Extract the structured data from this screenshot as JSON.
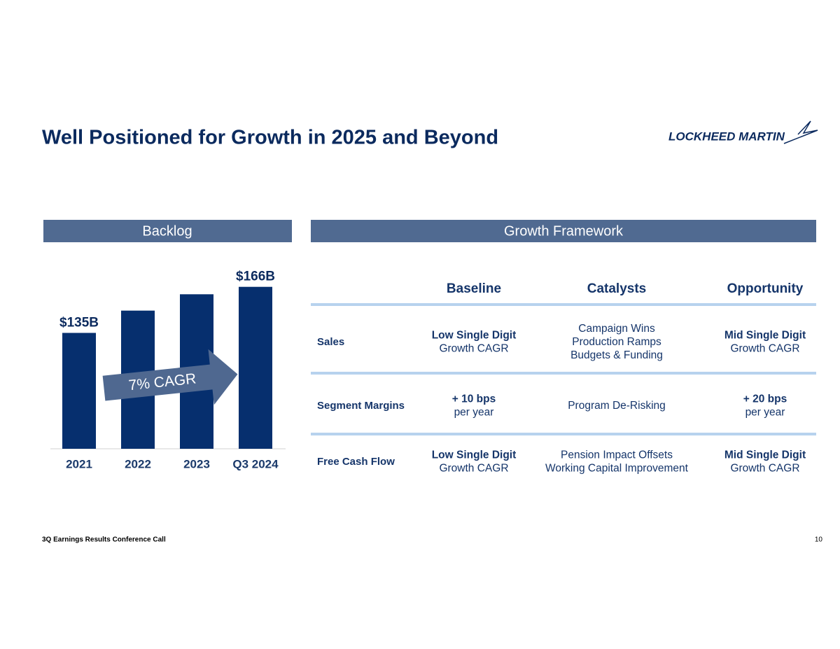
{
  "header": {
    "title": "Well Positioned for Growth in 2025 and Beyond",
    "logo": "LOCKHEED MARTIN"
  },
  "panels": {
    "left": "Backlog",
    "right": "Growth Framework"
  },
  "chart_data": {
    "type": "bar",
    "categories": [
      "2021",
      "2022",
      "2023",
      "Q3 2024"
    ],
    "values": [
      135,
      150,
      161,
      166
    ],
    "value_labels": [
      "$135B",
      null,
      null,
      "$166B"
    ],
    "color": "#062f6e",
    "ylim": [
      57,
      180
    ],
    "annotation": "7% CAGR"
  },
  "table": {
    "columns": [
      "Baseline",
      "Catalysts",
      "Opportunity"
    ],
    "rows": [
      {
        "label": "Sales",
        "cells": [
          {
            "head": "Low Single Digit",
            "lines": [
              "Growth CAGR"
            ]
          },
          {
            "lines": [
              "Campaign Wins",
              "Production Ramps",
              "Budgets & Funding"
            ]
          },
          {
            "head": "Mid Single Digit",
            "lines": [
              "Growth CAGR"
            ]
          }
        ]
      },
      {
        "label": "Segment Margins",
        "cells": [
          {
            "head": "+ 10 bps",
            "lines": [
              "per year"
            ]
          },
          {
            "lines": [
              "Program De-Risking"
            ]
          },
          {
            "head": "+ 20 bps",
            "lines": [
              "per year"
            ]
          }
        ]
      },
      {
        "label": "Free Cash Flow",
        "cells": [
          {
            "head": "Low Single Digit",
            "lines": [
              "Growth CAGR"
            ]
          },
          {
            "lines": [
              "Pension Impact Offsets",
              "Working Capital Improvement"
            ]
          },
          {
            "head": "Mid Single Digit",
            "lines": [
              "Growth CAGR"
            ]
          }
        ]
      }
    ]
  },
  "footer": {
    "text": "3Q Earnings Results Conference Call",
    "page": "10"
  }
}
